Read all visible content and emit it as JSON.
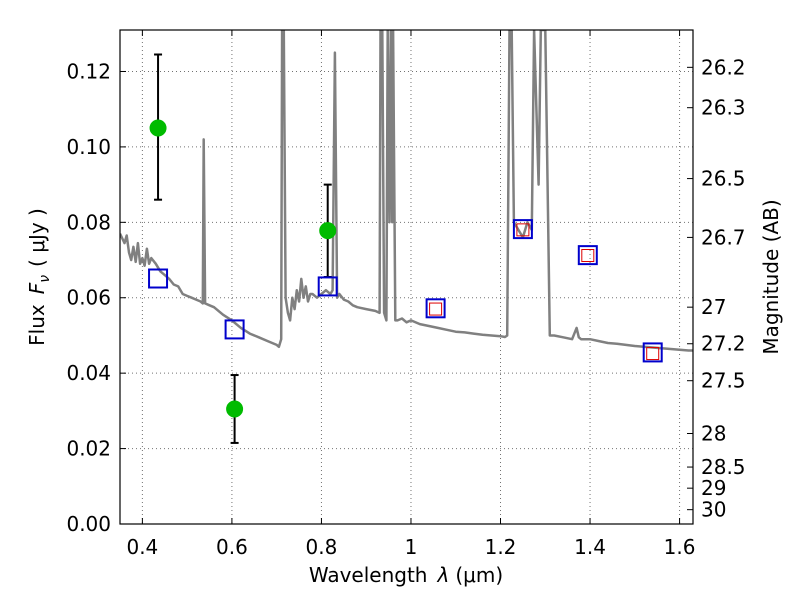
{
  "chart_data": {
    "type": "line",
    "xlabel_prefix": "Wavelength",
    "xlabel_symbol": "λ",
    "xlabel_unit": "(μm)",
    "ylabel_prefix": "Flux",
    "ylabel_symbol": "F",
    "ylabel_subscript": "ν",
    "ylabel_unit": "( μJy )",
    "y2label": "Magnitude (AB)",
    "xlim": [
      0.35,
      1.63
    ],
    "ylim": [
      0.0,
      0.131
    ],
    "grid": true,
    "x_ticks": [
      {
        "value": 0.4,
        "label": "0.4"
      },
      {
        "value": 0.6,
        "label": "0.6"
      },
      {
        "value": 0.8,
        "label": "0.8"
      },
      {
        "value": 1.0,
        "label": "1"
      },
      {
        "value": 1.2,
        "label": "1.2"
      },
      {
        "value": 1.4,
        "label": "1.4"
      },
      {
        "value": 1.6,
        "label": "1.6"
      }
    ],
    "y_ticks": [
      {
        "value": 0.0,
        "label": "0.00"
      },
      {
        "value": 0.02,
        "label": "0.02"
      },
      {
        "value": 0.04,
        "label": "0.04"
      },
      {
        "value": 0.06,
        "label": "0.06"
      },
      {
        "value": 0.08,
        "label": "0.08"
      },
      {
        "value": 0.1,
        "label": "0.10"
      },
      {
        "value": 0.12,
        "label": "0.12"
      }
    ],
    "mag_ticks": [
      {
        "flux": 0.1211,
        "label": "26.2"
      },
      {
        "flux": 0.1104,
        "label": "26.3"
      },
      {
        "flux": 0.0916,
        "label": "26.5"
      },
      {
        "flux": 0.076,
        "label": "26.7"
      },
      {
        "flux": 0.0575,
        "label": "27"
      },
      {
        "flux": 0.0478,
        "label": "27.2"
      },
      {
        "flux": 0.038,
        "label": "27.5"
      },
      {
        "flux": 0.024,
        "label": "28"
      },
      {
        "flux": 0.0151,
        "label": "28.5"
      },
      {
        "flux": 0.0095,
        "label": "29"
      },
      {
        "flux": 0.0038,
        "label": "30"
      }
    ],
    "series": [
      {
        "name": "SED model",
        "color": "#808080",
        "points": [
          [
            0.35,
            0.077
          ],
          [
            0.36,
            0.0745
          ],
          [
            0.365,
            0.0765
          ],
          [
            0.37,
            0.072
          ],
          [
            0.375,
            0.07
          ],
          [
            0.38,
            0.0735
          ],
          [
            0.385,
            0.0695
          ],
          [
            0.39,
            0.0745
          ],
          [
            0.395,
            0.069
          ],
          [
            0.4,
            0.0705
          ],
          [
            0.405,
            0.0685
          ],
          [
            0.41,
            0.073
          ],
          [
            0.415,
            0.069
          ],
          [
            0.42,
            0.0705
          ],
          [
            0.43,
            0.069
          ],
          [
            0.44,
            0.067
          ],
          [
            0.45,
            0.066
          ],
          [
            0.46,
            0.065
          ],
          [
            0.47,
            0.0635
          ],
          [
            0.48,
            0.063
          ],
          [
            0.49,
            0.061
          ],
          [
            0.5,
            0.0605
          ],
          [
            0.51,
            0.06
          ],
          [
            0.52,
            0.0595
          ],
          [
            0.53,
            0.059
          ],
          [
            0.535,
            0.0585
          ],
          [
            0.537,
            0.102
          ],
          [
            0.54,
            0.0585
          ],
          [
            0.55,
            0.058
          ],
          [
            0.56,
            0.0575
          ],
          [
            0.58,
            0.0555
          ],
          [
            0.6,
            0.054
          ],
          [
            0.62,
            0.052
          ],
          [
            0.64,
            0.0505
          ],
          [
            0.66,
            0.0495
          ],
          [
            0.68,
            0.0485
          ],
          [
            0.7,
            0.0475
          ],
          [
            0.705,
            0.047
          ],
          [
            0.71,
            0.049
          ],
          [
            0.712,
            0.131
          ],
          [
            0.716,
            0.131
          ],
          [
            0.72,
            0.06
          ],
          [
            0.725,
            0.056
          ],
          [
            0.73,
            0.054
          ],
          [
            0.735,
            0.06
          ],
          [
            0.74,
            0.057
          ],
          [
            0.745,
            0.062
          ],
          [
            0.75,
            0.059
          ],
          [
            0.755,
            0.065
          ],
          [
            0.76,
            0.06
          ],
          [
            0.765,
            0.063
          ],
          [
            0.77,
            0.059
          ],
          [
            0.775,
            0.061
          ],
          [
            0.78,
            0.061
          ],
          [
            0.79,
            0.06
          ],
          [
            0.8,
            0.061
          ],
          [
            0.81,
            0.062
          ],
          [
            0.82,
            0.061
          ],
          [
            0.825,
            0.062
          ],
          [
            0.83,
            0.125
          ],
          [
            0.835,
            0.06
          ],
          [
            0.84,
            0.061
          ],
          [
            0.85,
            0.0595
          ],
          [
            0.86,
            0.059
          ],
          [
            0.87,
            0.058
          ],
          [
            0.88,
            0.0575
          ],
          [
            0.9,
            0.057
          ],
          [
            0.92,
            0.0565
          ],
          [
            0.93,
            0.056
          ],
          [
            0.932,
            0.131
          ],
          [
            0.936,
            0.131
          ],
          [
            0.94,
            0.056
          ],
          [
            0.945,
            0.054
          ],
          [
            0.948,
            0.131
          ],
          [
            0.952,
            0.08
          ],
          [
            0.955,
            0.131
          ],
          [
            0.958,
            0.08
          ],
          [
            0.96,
            0.131
          ],
          [
            0.965,
            0.054
          ],
          [
            0.97,
            0.054
          ],
          [
            0.98,
            0.0545
          ],
          [
            0.99,
            0.0535
          ],
          [
            1.0,
            0.054
          ],
          [
            1.02,
            0.053
          ],
          [
            1.04,
            0.0525
          ],
          [
            1.06,
            0.052
          ],
          [
            1.08,
            0.0515
          ],
          [
            1.1,
            0.051
          ],
          [
            1.12,
            0.0508
          ],
          [
            1.14,
            0.0505
          ],
          [
            1.16,
            0.0502
          ],
          [
            1.18,
            0.05
          ],
          [
            1.2,
            0.0498
          ],
          [
            1.21,
            0.0496
          ],
          [
            1.215,
            0.05
          ],
          [
            1.22,
            0.131
          ],
          [
            1.225,
            0.131
          ],
          [
            1.23,
            0.08
          ],
          [
            1.24,
            0.078
          ],
          [
            1.25,
            0.076
          ],
          [
            1.26,
            0.08
          ],
          [
            1.27,
            0.078
          ],
          [
            1.275,
            0.131
          ],
          [
            1.285,
            0.09
          ],
          [
            1.29,
            0.131
          ],
          [
            1.3,
            0.131
          ],
          [
            1.31,
            0.05
          ],
          [
            1.32,
            0.05
          ],
          [
            1.34,
            0.0495
          ],
          [
            1.36,
            0.049
          ],
          [
            1.37,
            0.052
          ],
          [
            1.375,
            0.0495
          ],
          [
            1.38,
            0.049
          ],
          [
            1.4,
            0.049
          ],
          [
            1.42,
            0.0485
          ],
          [
            1.44,
            0.048
          ],
          [
            1.46,
            0.0478
          ],
          [
            1.48,
            0.0475
          ],
          [
            1.5,
            0.0472
          ],
          [
            1.52,
            0.047
          ],
          [
            1.54,
            0.0468
          ],
          [
            1.56,
            0.0466
          ],
          [
            1.58,
            0.0464
          ],
          [
            1.6,
            0.0462
          ],
          [
            1.62,
            0.046
          ],
          [
            1.63,
            0.046
          ]
        ]
      },
      {
        "name": "Observed photometry",
        "color": "#00bb00",
        "points": [
          {
            "x": 0.435,
            "y": 0.105,
            "ylo": 0.086,
            "yhi": 0.1245
          },
          {
            "x": 0.606,
            "y": 0.0305,
            "ylo": 0.0215,
            "yhi": 0.0395
          },
          {
            "x": 0.814,
            "y": 0.0778,
            "ylo": 0.0655,
            "yhi": 0.09
          }
        ]
      },
      {
        "name": "Model photometry",
        "color": "#0000cc",
        "points": [
          {
            "x": 0.435,
            "y": 0.0651
          },
          {
            "x": 0.606,
            "y": 0.0516
          },
          {
            "x": 0.814,
            "y": 0.063
          },
          {
            "x": 1.055,
            "y": 0.0572
          },
          {
            "x": 1.25,
            "y": 0.0782
          },
          {
            "x": 1.395,
            "y": 0.0713
          },
          {
            "x": 1.54,
            "y": 0.0455
          }
        ]
      },
      {
        "name": "Predicted flux",
        "color": "#dd0000",
        "points": [
          {
            "x": 1.055,
            "y": 0.057
          },
          {
            "x": 1.25,
            "y": 0.078
          },
          {
            "x": 1.395,
            "y": 0.0712
          },
          {
            "x": 1.54,
            "y": 0.0452
          }
        ]
      }
    ]
  }
}
